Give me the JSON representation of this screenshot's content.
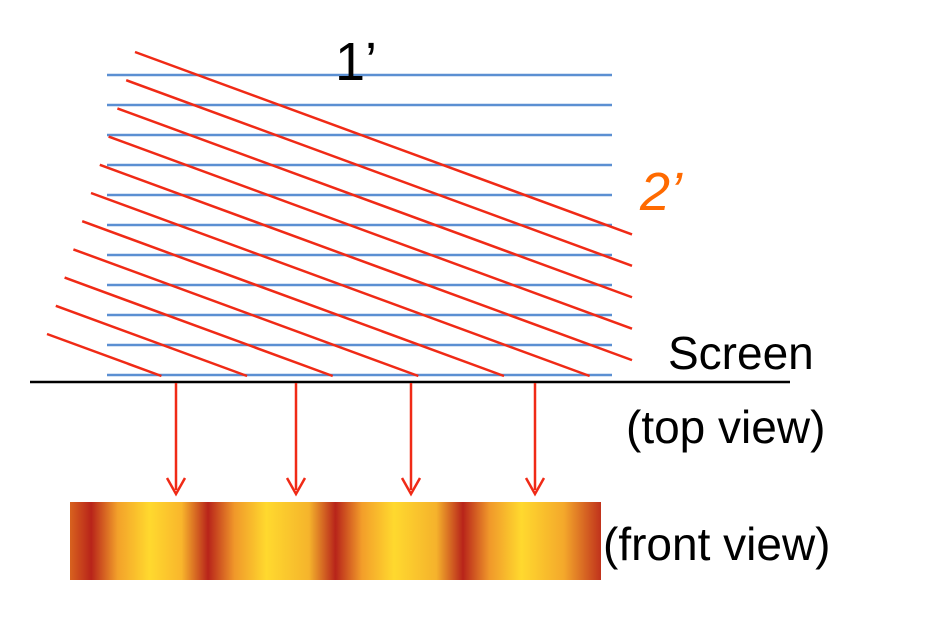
{
  "labels": {
    "wave1": "1’",
    "wave2": "2’",
    "screen": "Screen",
    "top_view": "(top view)",
    "front_view": "(front view)"
  },
  "colors": {
    "wave1_lines": "#5b8fd2",
    "wave2_lines": "#f02a16",
    "screen_line": "#000000",
    "arrows": "#f02a16",
    "wave2_label": "#ff6a00",
    "fringe_bright": "#ffd92e",
    "fringe_dark": "#b8241a"
  },
  "wave1_line_count": 11,
  "wave2_line_count": 11,
  "arrow_count": 4,
  "fringe_count": 4
}
